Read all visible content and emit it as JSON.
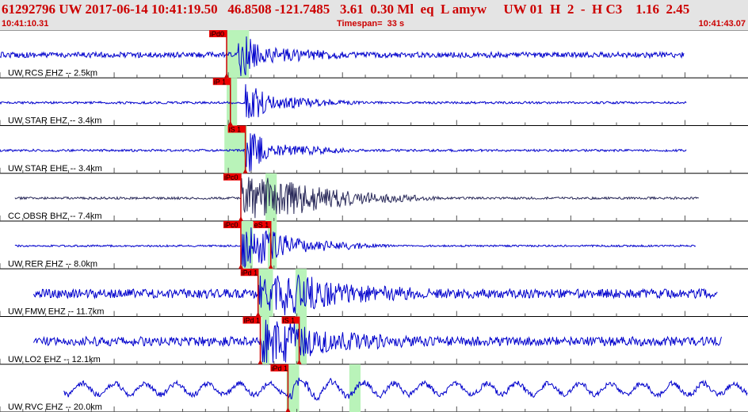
{
  "header": {
    "title": "61292796 UW 2017-06-14 10:41:19.50   46.8508 -121.7485   3.61  0.30 Ml  eq  L amyw     UW 01  H  2  -  H C3    1.16  2.45",
    "start_time": "10:41:10.31",
    "timespan": "Timespan=  33 s",
    "end_time": "10:41:43.07"
  },
  "colors": {
    "header_bg": "#e4e4e4",
    "header_text": "#cc0000",
    "trace": "#0000cc",
    "trace_alt": "#2a2a5a",
    "pick_box": "#ee0000",
    "window_green": "#b9f3b9",
    "ticks": "#555555"
  },
  "traces": [
    {
      "label": "UW RCS EHZ -- 2.5km",
      "color": "trace",
      "data_start": 0.0,
      "data_end": 0.915,
      "amp": 0.12,
      "event": [
        0.318,
        0.35
      ],
      "windows": [
        [
          0.303,
          0.333
        ]
      ],
      "picks": [
        {
          "text": "iPd0",
          "pos": 0.303
        }
      ]
    },
    {
      "label": "UW STAR EHZ -- 3.4km",
      "color": "trace",
      "data_start": 0.0,
      "data_end": 0.918,
      "amp": 0.05,
      "event": [
        0.328,
        0.36
      ],
      "windows": [
        [
          0.303,
          0.317
        ]
      ],
      "picks": [
        {
          "text": "iP 1",
          "pos": 0.308
        }
      ]
    },
    {
      "label": "UW STAR EHE -- 3.4km",
      "color": "trace",
      "data_start": 0.0,
      "data_end": 0.918,
      "amp": 0.05,
      "event": [
        0.328,
        0.36
      ],
      "windows": [
        [
          0.3,
          0.33
        ]
      ],
      "picks": [
        {
          "text": "iS 1",
          "pos": 0.328
        }
      ]
    },
    {
      "label": "CC OBSR BHZ -- 7.4km",
      "color": "trace_alt",
      "data_start": 0.02,
      "data_end": 0.935,
      "amp": 0.05,
      "event": [
        0.322,
        0.47
      ],
      "windows": [
        [
          0.355,
          0.37
        ]
      ],
      "picks": [
        {
          "text": "iPc0",
          "pos": 0.322
        }
      ]
    },
    {
      "label": "UW RER EHZ -- 8.0km",
      "color": "trace",
      "data_start": 0.02,
      "data_end": 0.93,
      "amp": 0.04,
      "event": [
        0.322,
        0.4
      ],
      "windows": [
        [
          0.323,
          0.338
        ],
        [
          0.358,
          0.37
        ]
      ],
      "picks": [
        {
          "text": "iPc0",
          "pos": 0.322
        },
        {
          "text": "eS 1",
          "pos": 0.362
        }
      ]
    },
    {
      "label": "UW FMW EHZ -- 11.7km",
      "color": "trace",
      "data_start": 0.045,
      "data_end": 0.96,
      "amp": 0.2,
      "event": [
        0.345,
        0.46
      ],
      "windows": [
        [
          0.345,
          0.365
        ],
        [
          0.395,
          0.41
        ]
      ],
      "picks": [
        {
          "text": "iPd 1",
          "pos": 0.345
        }
      ]
    },
    {
      "label": "UW LO2 EHZ -- 12.1km",
      "color": "trace",
      "data_start": 0.045,
      "data_end": 0.965,
      "amp": 0.2,
      "event": [
        0.348,
        0.44
      ],
      "windows": [
        [
          0.35,
          0.36
        ],
        [
          0.395,
          0.41
        ]
      ],
      "picks": [
        {
          "text": "iPd 1",
          "pos": 0.348
        },
        {
          "text": "iS 1",
          "pos": 0.4
        }
      ]
    },
    {
      "label": "UW RVC EHZ -- 20.0km",
      "color": "trace",
      "data_start": 0.085,
      "data_end": 1.0,
      "amp": 0.45,
      "event": [
        0.385,
        0.4
      ],
      "windows": [
        [
          0.383,
          0.4
        ],
        [
          0.467,
          0.482
        ]
      ],
      "picks": [
        {
          "text": "iPd 1",
          "pos": 0.385
        }
      ]
    }
  ]
}
